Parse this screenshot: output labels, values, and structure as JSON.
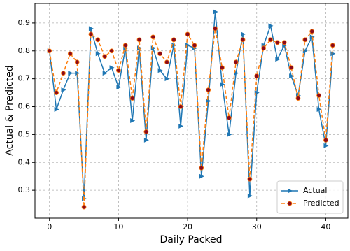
{
  "chart_data": {
    "type": "line",
    "x_label": "Daily Packed",
    "y_label": "Actual & Predicted",
    "x": [
      0,
      1,
      2,
      3,
      4,
      5,
      6,
      7,
      8,
      9,
      10,
      11,
      12,
      13,
      14,
      15,
      16,
      17,
      18,
      19,
      20,
      21,
      22,
      23,
      24,
      25,
      26,
      27,
      28,
      29,
      30,
      31,
      32,
      33,
      34,
      35,
      36,
      37,
      38,
      39,
      40,
      41
    ],
    "series": [
      {
        "name": "Actual",
        "color": "#1f77b4",
        "marker": "triangle-right",
        "marker_color": "#1f77b4",
        "dashed": false,
        "values": [
          0.8,
          0.59,
          0.66,
          0.72,
          0.72,
          0.27,
          0.88,
          0.79,
          0.72,
          0.74,
          0.67,
          0.81,
          0.55,
          0.81,
          0.48,
          0.81,
          0.73,
          0.7,
          0.82,
          0.53,
          0.82,
          0.81,
          0.35,
          0.62,
          0.94,
          0.68,
          0.5,
          0.72,
          0.86,
          0.28,
          0.65,
          0.82,
          0.89,
          0.77,
          0.82,
          0.71,
          0.64,
          0.8,
          0.85,
          0.59,
          0.46,
          0.79
        ]
      },
      {
        "name": "Predicted",
        "color": "#ff7f0e",
        "marker": "circle",
        "marker_color": "#8b0a1a",
        "dashed": true,
        "values": [
          0.8,
          0.65,
          0.72,
          0.79,
          0.76,
          0.24,
          0.86,
          0.84,
          0.78,
          0.8,
          0.73,
          0.82,
          0.63,
          0.84,
          0.51,
          0.85,
          0.79,
          0.76,
          0.84,
          0.6,
          0.86,
          0.82,
          0.38,
          0.66,
          0.88,
          0.74,
          0.56,
          0.76,
          0.84,
          0.34,
          0.71,
          0.81,
          0.84,
          0.83,
          0.83,
          0.74,
          0.63,
          0.84,
          0.87,
          0.64,
          0.48,
          0.82
        ]
      }
    ],
    "xlim": [
      -2.1,
      43.2
    ],
    "xticks": [
      0,
      10,
      20,
      30,
      40
    ],
    "ylim": [
      0.2,
      0.97
    ],
    "yticks": [
      0.3,
      0.4,
      0.5,
      0.6,
      0.7,
      0.8,
      0.9
    ],
    "grid": true,
    "legend": "lower right"
  }
}
